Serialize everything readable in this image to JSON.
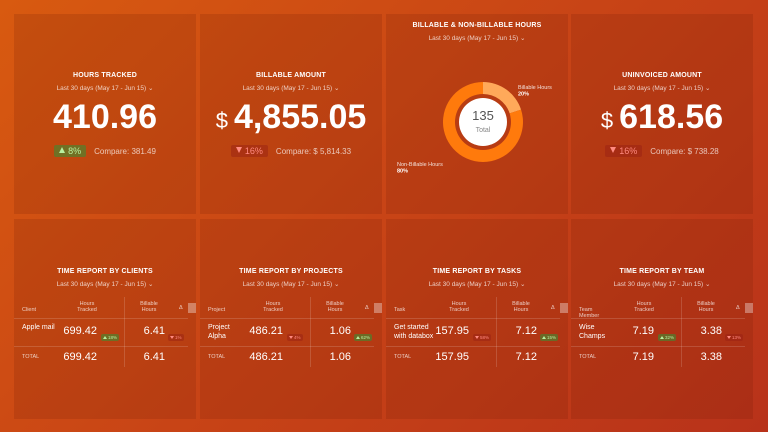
{
  "kpis": [
    {
      "title": "HOURS TRACKED",
      "period": "Last 30 days (May 17 - Jun 15)",
      "value": "410.96",
      "change": "8%",
      "direction": "up",
      "compare": "Compare: 381.49"
    },
    {
      "title": "BILLABLE AMOUNT",
      "period": "Last 30 days (May 17 - Jun 15)",
      "currency": "$",
      "value": "4,855.05",
      "change": "16%",
      "direction": "down",
      "compare": "Compare: $ 5,814.33"
    },
    {
      "title": "UNINVOICED AMOUNT",
      "period": "Last 30 days (May 17 - Jun 15)",
      "currency": "$",
      "value": "618.56",
      "change": "16%",
      "direction": "down",
      "compare": "Compare: $ 738.28"
    }
  ],
  "donut": {
    "title": "BILLABLE & NON-BILLABLE HOURS",
    "period": "Last 30 days (May 17 - Jun 15)",
    "center_value": "135",
    "center_label": "Total",
    "categories": [
      "Billable Hours",
      "Non-Billable Hours"
    ],
    "values": [
      20,
      80
    ],
    "value_labels": [
      "20%",
      "80%"
    ],
    "colors": [
      "#ffa95a",
      "#ff7a0c"
    ]
  },
  "tables": [
    {
      "title": "TIME REPORT BY CLIENTS",
      "period": "Last 30 days (May 17 - Jun 15)",
      "columns": [
        "Client",
        "Hours Tracked",
        "Billable Hours",
        "Δ"
      ],
      "rows": [
        {
          "name": "Apple mail",
          "hours": "699.42",
          "hours_change": "18%",
          "hours_dir": "up",
          "billable": "6.41",
          "billable_change": "1%",
          "billable_dir": "down"
        }
      ],
      "total": {
        "label": "TOTAL",
        "hours": "699.42",
        "billable": "6.41"
      }
    },
    {
      "title": "TIME REPORT BY PROJECTS",
      "period": "Last 30 days (May 17 - Jun 15)",
      "columns": [
        "Project",
        "Hours Tracked",
        "Billable Hours",
        "Δ"
      ],
      "rows": [
        {
          "name": "Project Alpha",
          "hours": "486.21",
          "hours_change": "4%",
          "hours_dir": "down",
          "billable": "1.06",
          "billable_change": "62%",
          "billable_dir": "up"
        }
      ],
      "total": {
        "label": "TOTAL",
        "hours": "486.21",
        "billable": "1.06"
      }
    },
    {
      "title": "TIME REPORT BY TASKS",
      "period": "Last 30 days (May 17 - Jun 15)",
      "columns": [
        "Task",
        "Hours Tracked",
        "Billable Hours",
        "Δ"
      ],
      "rows": [
        {
          "name": "Get started with databox",
          "hours": "157.95",
          "hours_change": "58%",
          "hours_dir": "down",
          "billable": "7.12",
          "billable_change": "15%",
          "billable_dir": "up"
        }
      ],
      "total": {
        "label": "TOTAL",
        "hours": "157.95",
        "billable": "7.12"
      }
    },
    {
      "title": "TIME REPORT BY TEAM",
      "period": "Last 30 days (May 17 - Jun 15)",
      "columns": [
        "Team Member",
        "Hours Tracked",
        "Billable Hours",
        "Δ"
      ],
      "rows": [
        {
          "name": "Wise Champs",
          "hours": "7.19",
          "hours_change": "32%",
          "hours_dir": "up",
          "billable": "3.38",
          "billable_change": "13%",
          "billable_dir": "down"
        }
      ],
      "total": {
        "label": "TOTAL",
        "hours": "7.19",
        "billable": "3.38"
      }
    }
  ]
}
